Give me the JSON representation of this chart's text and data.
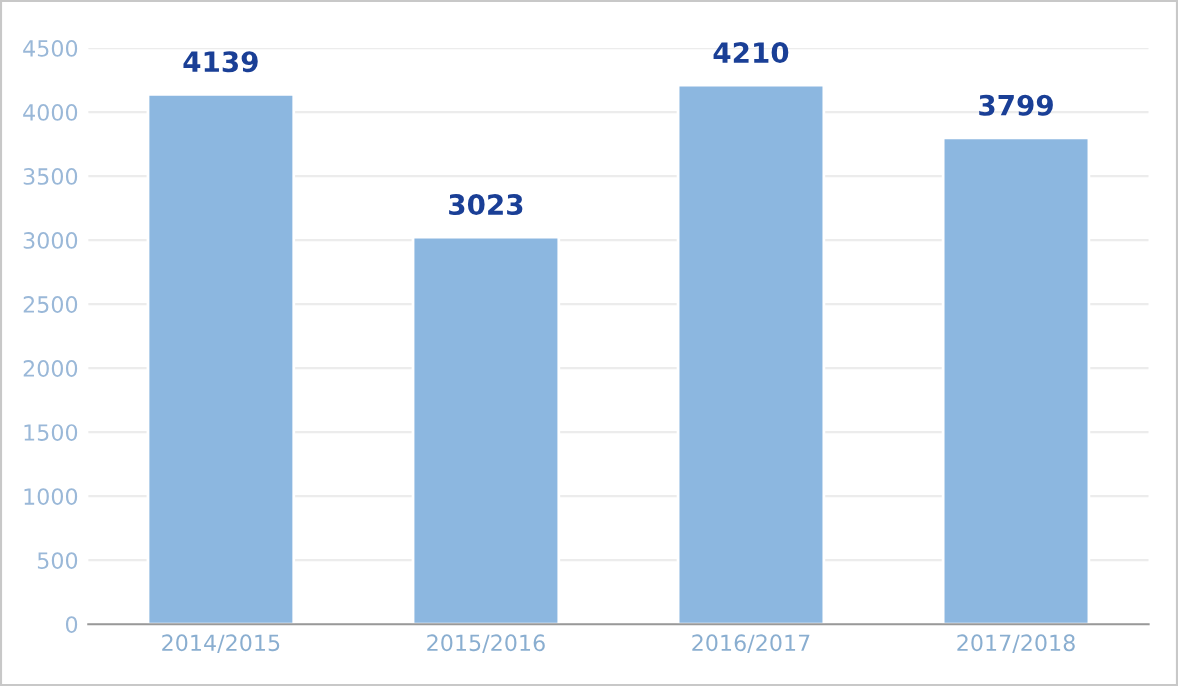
{
  "chart_data": {
    "type": "bar",
    "categories": [
      "2014/2015",
      "2015/2016",
      "2016/2017",
      "2017/2018"
    ],
    "values": [
      4139,
      3023,
      4210,
      3799
    ],
    "color": "#8cb7e0",
    "ylim": [
      0,
      4500
    ],
    "yticks": [
      0,
      500,
      1000,
      1500,
      2000,
      2500,
      3000,
      3500,
      4000,
      4500
    ],
    "grid": "y",
    "data_labels": true
  }
}
